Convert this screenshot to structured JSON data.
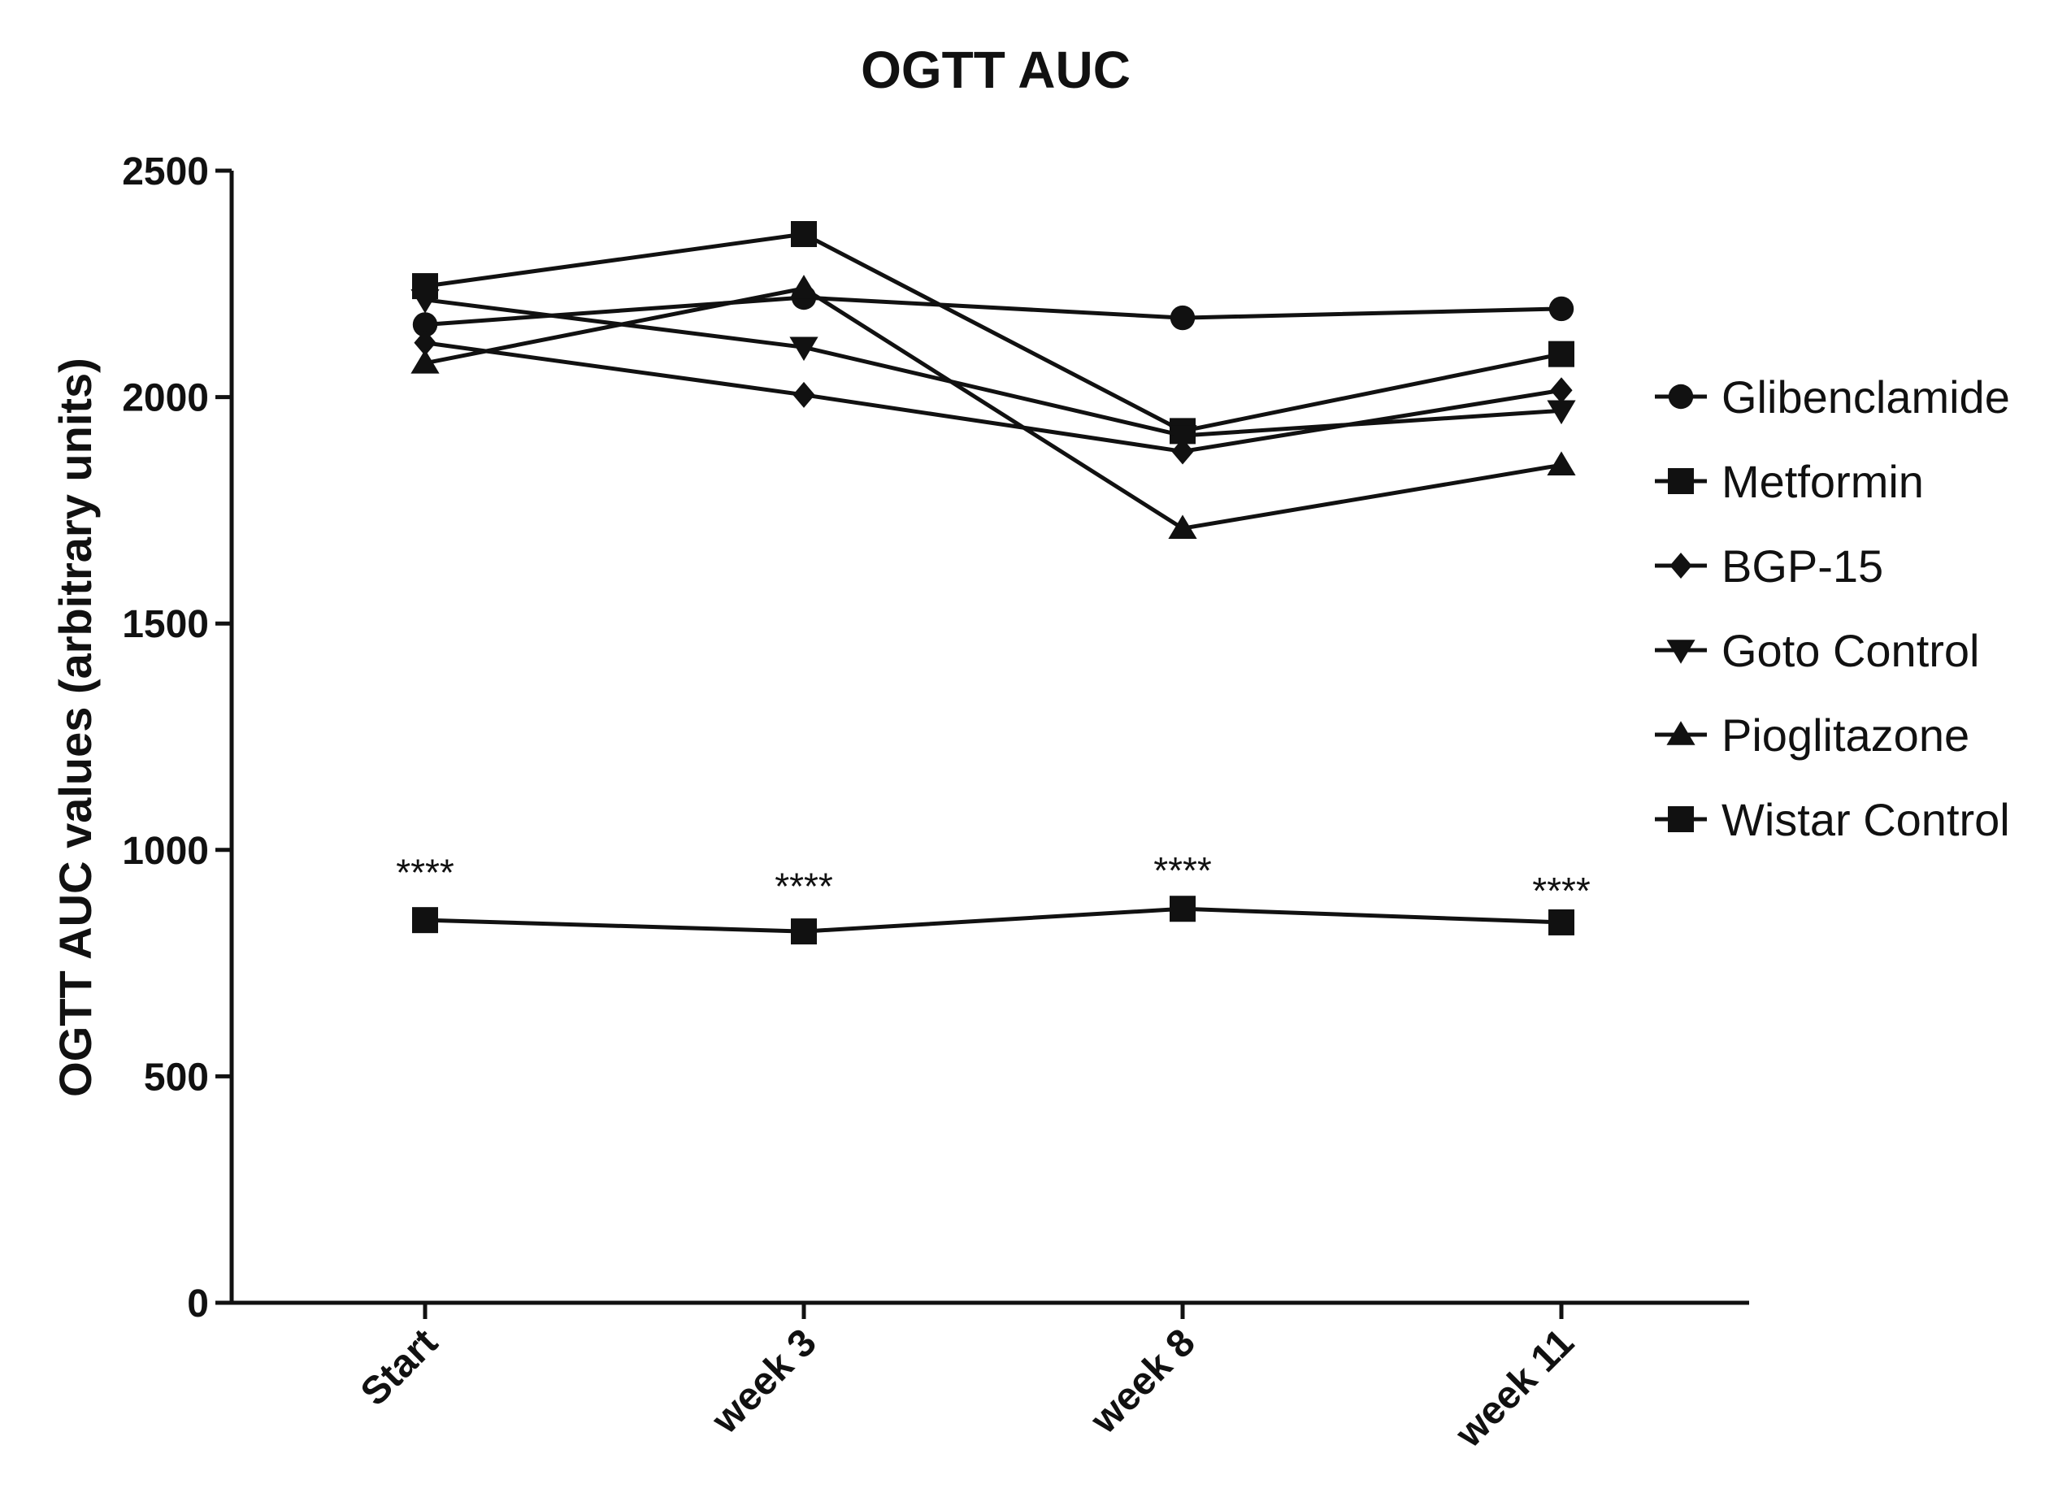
{
  "chart_data": {
    "type": "line",
    "title": "OGTT AUC",
    "xlabel": "",
    "ylabel": "OGTT AUC values (arbitrary units)",
    "categories": [
      "Start",
      "week 3",
      "week 8",
      "week 11"
    ],
    "ylim": [
      0,
      2500
    ],
    "yticks": [
      0,
      500,
      1000,
      1500,
      2000,
      2500
    ],
    "grid": false,
    "legend_position": "right",
    "series": [
      {
        "name": "Glibenclamide",
        "marker": "circle",
        "values": [
          2160,
          2220,
          2175,
          2195
        ]
      },
      {
        "name": "Metformin",
        "marker": "square",
        "values": [
          2245,
          2360,
          1925,
          2095
        ]
      },
      {
        "name": "BGP-15",
        "marker": "diamond",
        "values": [
          2120,
          2005,
          1880,
          2015
        ]
      },
      {
        "name": "Goto Control",
        "marker": "triangle-down",
        "values": [
          2215,
          2110,
          1915,
          1970
        ]
      },
      {
        "name": "Pioglitazone",
        "marker": "triangle-up",
        "values": [
          2075,
          2240,
          1710,
          1850
        ]
      },
      {
        "name": "Wistar Control",
        "marker": "square",
        "values": [
          845,
          820,
          870,
          840
        ]
      }
    ],
    "annotations": [
      {
        "text": "****",
        "category": "Start",
        "y": 975
      },
      {
        "text": "****",
        "category": "week 3",
        "y": 945
      },
      {
        "text": "****",
        "category": "week 8",
        "y": 980
      },
      {
        "text": "****",
        "category": "week 11",
        "y": 935
      }
    ],
    "colors": {
      "line": "#111111",
      "marker": "#111111"
    }
  }
}
